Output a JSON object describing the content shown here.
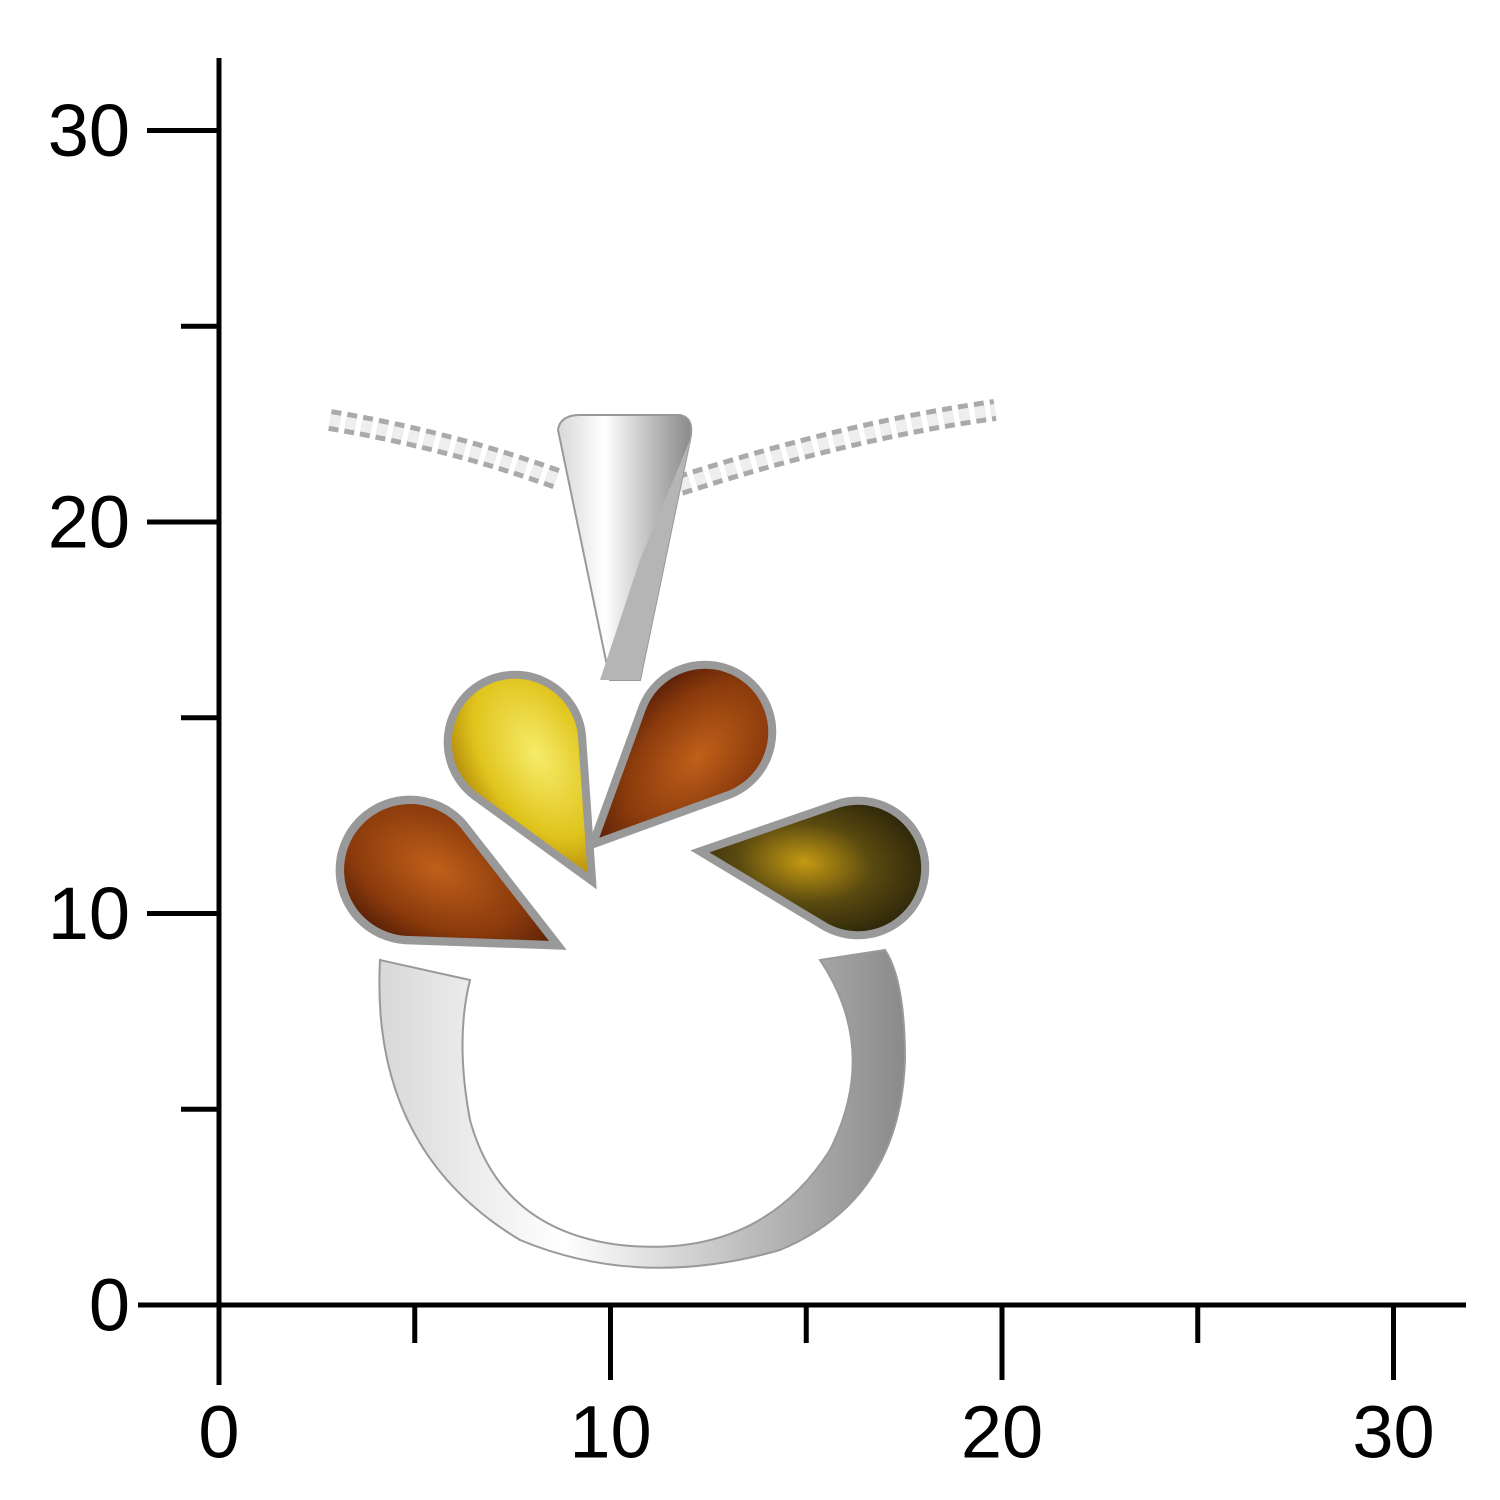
{
  "scale": {
    "xlim": [
      -2,
      32
    ],
    "ylim": [
      -2,
      32
    ],
    "xticks": [
      0,
      10,
      20,
      30
    ],
    "yticks": [
      0,
      10,
      20,
      30
    ],
    "xticks_minor": [
      5,
      15,
      25
    ],
    "yticks_minor": [
      5,
      15,
      25
    ]
  }
}
